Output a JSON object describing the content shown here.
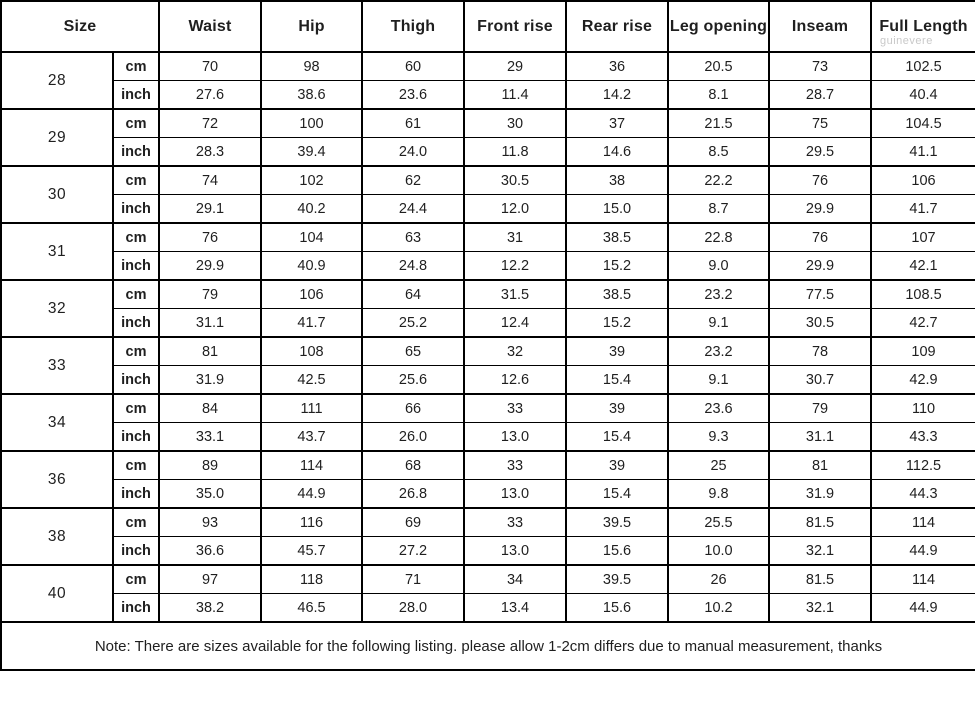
{
  "table": {
    "headers": [
      "Size",
      "Waist",
      "Hip",
      "Thigh",
      "Front rise",
      "Rear rise",
      "Leg opening",
      "Inseam",
      "Full Length"
    ],
    "unit_labels": [
      "cm",
      "inch"
    ],
    "rows": [
      {
        "size": "28",
        "cm": [
          "70",
          "98",
          "60",
          "29",
          "36",
          "20.5",
          "73",
          "102.5"
        ],
        "inch": [
          "27.6",
          "38.6",
          "23.6",
          "11.4",
          "14.2",
          "8.1",
          "28.7",
          "40.4"
        ]
      },
      {
        "size": "29",
        "cm": [
          "72",
          "100",
          "61",
          "30",
          "37",
          "21.5",
          "75",
          "104.5"
        ],
        "inch": [
          "28.3",
          "39.4",
          "24.0",
          "11.8",
          "14.6",
          "8.5",
          "29.5",
          "41.1"
        ]
      },
      {
        "size": "30",
        "cm": [
          "74",
          "102",
          "62",
          "30.5",
          "38",
          "22.2",
          "76",
          "106"
        ],
        "inch": [
          "29.1",
          "40.2",
          "24.4",
          "12.0",
          "15.0",
          "8.7",
          "29.9",
          "41.7"
        ]
      },
      {
        "size": "31",
        "cm": [
          "76",
          "104",
          "63",
          "31",
          "38.5",
          "22.8",
          "76",
          "107"
        ],
        "inch": [
          "29.9",
          "40.9",
          "24.8",
          "12.2",
          "15.2",
          "9.0",
          "29.9",
          "42.1"
        ]
      },
      {
        "size": "32",
        "cm": [
          "79",
          "106",
          "64",
          "31.5",
          "38.5",
          "23.2",
          "77.5",
          "108.5"
        ],
        "inch": [
          "31.1",
          "41.7",
          "25.2",
          "12.4",
          "15.2",
          "9.1",
          "30.5",
          "42.7"
        ]
      },
      {
        "size": "33",
        "cm": [
          "81",
          "108",
          "65",
          "32",
          "39",
          "23.2",
          "78",
          "109"
        ],
        "inch": [
          "31.9",
          "42.5",
          "25.6",
          "12.6",
          "15.4",
          "9.1",
          "30.7",
          "42.9"
        ]
      },
      {
        "size": "34",
        "cm": [
          "84",
          "111",
          "66",
          "33",
          "39",
          "23.6",
          "79",
          "110"
        ],
        "inch": [
          "33.1",
          "43.7",
          "26.0",
          "13.0",
          "15.4",
          "9.3",
          "31.1",
          "43.3"
        ]
      },
      {
        "size": "36",
        "cm": [
          "89",
          "114",
          "68",
          "33",
          "39",
          "25",
          "81",
          "112.5"
        ],
        "inch": [
          "35.0",
          "44.9",
          "26.8",
          "13.0",
          "15.4",
          "9.8",
          "31.9",
          "44.3"
        ]
      },
      {
        "size": "38",
        "cm": [
          "93",
          "116",
          "69",
          "33",
          "39.5",
          "25.5",
          "81.5",
          "114"
        ],
        "inch": [
          "36.6",
          "45.7",
          "27.2",
          "13.0",
          "15.6",
          "10.0",
          "32.1",
          "44.9"
        ]
      },
      {
        "size": "40",
        "cm": [
          "97",
          "118",
          "71",
          "34",
          "39.5",
          "26",
          "81.5",
          "114"
        ],
        "inch": [
          "38.2",
          "46.5",
          "28.0",
          "13.4",
          "15.6",
          "10.2",
          "32.1",
          "44.9"
        ]
      }
    ],
    "note": "Note: There are sizes available for the following listing. please allow 1-2cm differs due to manual measurement, thanks"
  },
  "watermark": "guinevere",
  "colors": {
    "border": "#000000",
    "text": "#1f1f1f",
    "background": "#ffffff",
    "watermark": "#c9c9c9"
  }
}
